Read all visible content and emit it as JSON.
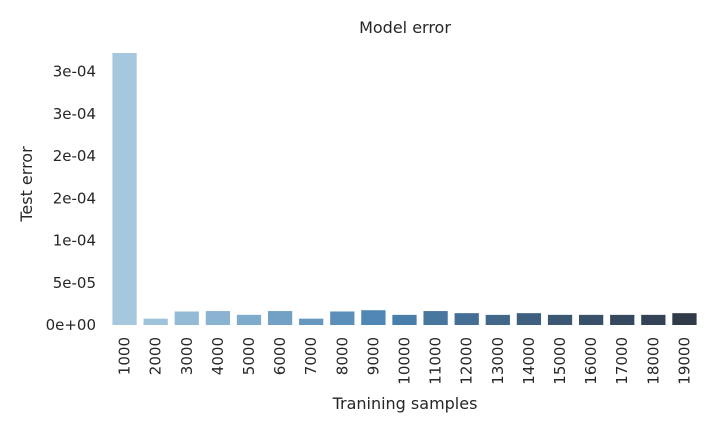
{
  "chart_data": {
    "type": "bar",
    "title": "Model error",
    "xlabel": "Tranining samples",
    "ylabel": "Test error",
    "categories": [
      "1000",
      "2000",
      "3000",
      "4000",
      "5000",
      "6000",
      "7000",
      "8000",
      "9000",
      "10000",
      "11000",
      "12000",
      "13000",
      "14000",
      "15000",
      "16000",
      "17000",
      "18000",
      "19000"
    ],
    "values": [
      0.000322,
      7.5e-06,
      1.6e-05,
      1.65e-05,
      1.2e-05,
      1.65e-05,
      7.5e-06,
      1.6e-05,
      1.75e-05,
      1.2e-05,
      1.65e-05,
      1.4e-05,
      1.2e-05,
      1.4e-05,
      1.2e-05,
      1.2e-05,
      1.2e-05,
      1.2e-05,
      1.4e-05
    ],
    "yticks": [
      0,
      5e-05,
      0.0001,
      0.00015,
      0.0002,
      0.00025,
      0.0003
    ],
    "ytick_labels": [
      "0e+00",
      "5e-05",
      "1e-04",
      "2e-04",
      "2e-04",
      "3e-04",
      "3e-04"
    ],
    "ylim": [
      0,
      0.000322
    ],
    "grid": false,
    "palette": [
      "#a6c8de",
      "#9fc3da",
      "#94bbd6",
      "#89b3d0",
      "#7eaacb",
      "#72a1c5",
      "#6698bf",
      "#5b8fb9",
      "#5086b3",
      "#4a7eaa",
      "#47769f",
      "#446e94",
      "#416789",
      "#3e607e",
      "#3b5873",
      "#385169",
      "#35495e",
      "#334254",
      "#303a48"
    ]
  }
}
